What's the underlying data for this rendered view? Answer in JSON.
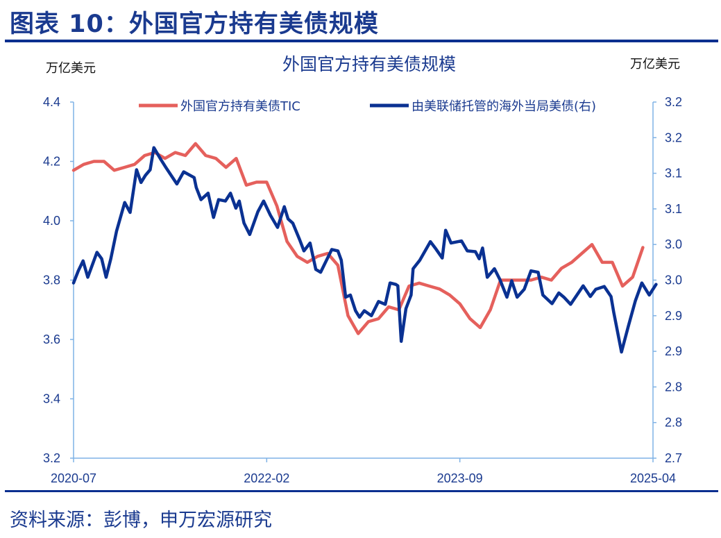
{
  "header": {
    "title": "图表 10：外国官方持有美债规模"
  },
  "footer": {
    "source": "资料来源：彭博，申万宏源研究"
  },
  "chart_data": {
    "type": "line",
    "title": "外国官方持有美债规模",
    "left_unit": "万亿美元",
    "right_unit": "万亿美元",
    "x_ticks": [
      "2020-07",
      "2022-02",
      "2023-09",
      "2025-04"
    ],
    "xlim": [
      "2020-07",
      "2025-04"
    ],
    "ylim_left": [
      3.2,
      4.4
    ],
    "y_ticks_left": [
      "3.2",
      "3.4",
      "3.6",
      "3.8",
      "4.0",
      "4.2",
      "4.4"
    ],
    "ylim_right": [
      2.7,
      3.2
    ],
    "y_ticks_right": [
      "2.7",
      "2.8",
      "2.8",
      "2.9",
      "2.9",
      "3.0",
      "3.0",
      "3.1",
      "3.1",
      "3.2",
      "3.2"
    ],
    "grid": false,
    "legend_position": "top",
    "series": [
      {
        "name": "外国官方持有美债TIC",
        "axis": "left",
        "color": "#e5605c",
        "x": [
          "2020-07",
          "2020-08",
          "2020-09",
          "2020-10",
          "2020-11",
          "2020-12",
          "2021-01",
          "2021-02",
          "2021-03",
          "2021-04",
          "2021-05",
          "2021-06",
          "2021-07",
          "2021-08",
          "2021-09",
          "2021-10",
          "2021-11",
          "2021-12",
          "2022-01",
          "2022-02",
          "2022-03",
          "2022-04",
          "2022-05",
          "2022-06",
          "2022-07",
          "2022-08",
          "2022-09",
          "2022-10",
          "2022-11",
          "2022-12",
          "2023-01",
          "2023-02",
          "2023-03",
          "2023-04",
          "2023-05",
          "2023-06",
          "2023-07",
          "2023-08",
          "2023-09",
          "2023-10",
          "2023-11",
          "2023-12",
          "2024-01",
          "2024-02",
          "2024-03",
          "2024-04",
          "2024-05",
          "2024-06",
          "2024-07",
          "2024-08",
          "2024-09",
          "2024-10",
          "2024-11",
          "2024-12",
          "2025-01",
          "2025-02",
          "2025-03"
        ],
        "y": [
          4.17,
          4.19,
          4.2,
          4.2,
          4.17,
          4.18,
          4.19,
          4.22,
          4.23,
          4.21,
          4.23,
          4.22,
          4.26,
          4.22,
          4.21,
          4.18,
          4.21,
          4.12,
          4.13,
          4.13,
          4.05,
          3.93,
          3.88,
          3.86,
          3.88,
          3.89,
          3.85,
          3.68,
          3.62,
          3.66,
          3.67,
          3.71,
          3.7,
          3.78,
          3.79,
          3.78,
          3.77,
          3.75,
          3.72,
          3.67,
          3.64,
          3.7,
          3.8,
          3.8,
          3.8,
          3.8,
          3.81,
          3.8,
          3.84,
          3.86,
          3.89,
          3.92,
          3.86,
          3.86,
          3.78,
          3.81,
          3.91
        ]
      },
      {
        "name": "由美联储托管的海外当局美债(右)",
        "axis": "right",
        "color": "#0a3192",
        "x": [
          "2020-07-01",
          "2020-07-15",
          "2020-07-29",
          "2020-08-13",
          "2020-09-10",
          "2020-09-24",
          "2020-10-07",
          "2020-10-21",
          "2020-11-08",
          "2020-12-02",
          "2020-12-18",
          "2021-01-07",
          "2021-01-20",
          "2021-02-03",
          "2021-02-17",
          "2021-02-28",
          "2021-03-19",
          "2021-04-05",
          "2021-05-06",
          "2021-05-26",
          "2021-06-27",
          "2021-07-03",
          "2021-07-17",
          "2021-08-08",
          "2021-08-24",
          "2021-09-09",
          "2021-09-29",
          "2021-10-14",
          "2021-10-30",
          "2021-11-10",
          "2021-11-24",
          "2021-12-11",
          "2022-01-05",
          "2022-01-22",
          "2022-02-12",
          "2022-03-03",
          "2022-03-23",
          "2022-04-04",
          "2022-04-18",
          "2022-05-08",
          "2022-05-21",
          "2022-06-09",
          "2022-06-26",
          "2022-07-10",
          "2022-08-13",
          "2022-09-01",
          "2022-09-11",
          "2022-09-24",
          "2022-10-08",
          "2022-10-23",
          "2022-11-05",
          "2022-11-19",
          "2022-12-10",
          "2023-01-01",
          "2023-01-21",
          "2023-02-05",
          "2023-02-22",
          "2023-02-28",
          "2023-03-08",
          "2023-03-22",
          "2023-04-07",
          "2023-04-13",
          "2023-05-03",
          "2023-06-04",
          "2023-06-20",
          "2023-07-09",
          "2023-07-19",
          "2023-08-05",
          "2023-09-06",
          "2023-09-23",
          "2023-10-17",
          "2023-10-28",
          "2023-11-08",
          "2023-11-22",
          "2023-12-13",
          "2023-12-29",
          "2024-01-20",
          "2024-02-04",
          "2024-02-20",
          "2024-03-11",
          "2024-04-01",
          "2024-04-22",
          "2024-05-06",
          "2024-06-03",
          "2024-06-23",
          "2024-07-08",
          "2024-07-28",
          "2024-09-05",
          "2024-09-26",
          "2024-10-12",
          "2024-11-07",
          "2024-11-27",
          "2024-12-05",
          "2024-12-28",
          "2025-01-18",
          "2025-02-09",
          "2025-02-28",
          "2025-03-20",
          "2025-04-10"
        ],
        "y": [
          2.946,
          2.963,
          2.977,
          2.954,
          2.989,
          2.98,
          2.954,
          2.98,
          3.019,
          3.059,
          3.045,
          3.105,
          3.087,
          3.097,
          3.105,
          3.136,
          3.119,
          3.107,
          3.085,
          3.102,
          3.094,
          3.08,
          3.063,
          3.072,
          3.038,
          3.063,
          3.061,
          3.072,
          3.051,
          3.061,
          3.03,
          3.014,
          3.046,
          3.061,
          3.041,
          3.024,
          3.053,
          3.036,
          3.03,
          3.007,
          2.991,
          3.002,
          2.965,
          2.961,
          2.993,
          2.991,
          2.978,
          2.926,
          2.929,
          2.907,
          2.898,
          2.907,
          2.9,
          2.92,
          2.916,
          2.946,
          2.944,
          2.942,
          2.864,
          2.91,
          2.929,
          2.966,
          2.978,
          3.004,
          2.994,
          2.981,
          3.02,
          3.002,
          3.005,
          2.991,
          2.99,
          2.98,
          2.995,
          2.954,
          2.966,
          2.951,
          2.926,
          2.949,
          2.926,
          2.937,
          2.963,
          2.961,
          2.929,
          2.917,
          2.932,
          2.926,
          2.916,
          2.942,
          2.927,
          2.937,
          2.941,
          2.927,
          2.905,
          2.849,
          2.885,
          2.921,
          2.946,
          2.929,
          2.944
        ]
      }
    ]
  }
}
